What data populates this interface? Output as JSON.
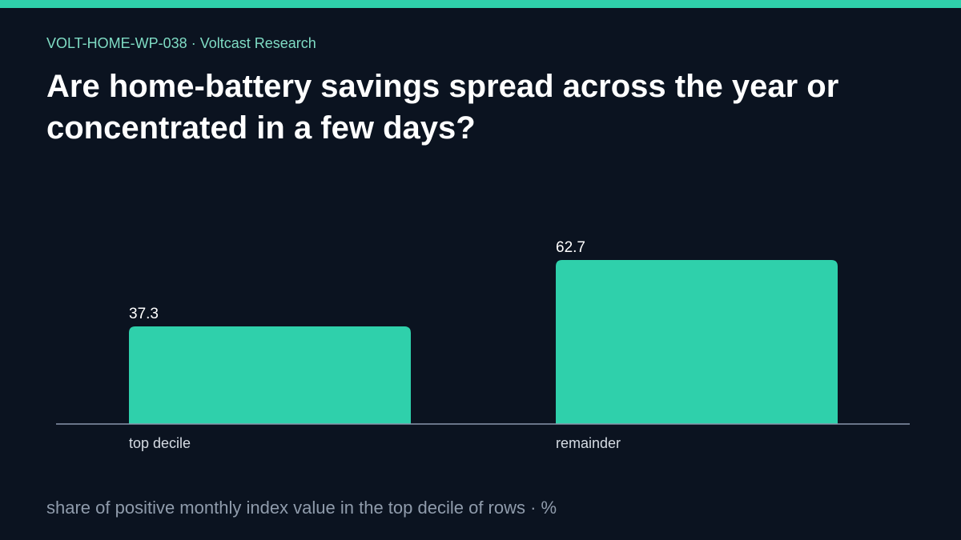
{
  "header": {
    "kicker": "VOLT-HOME-WP-038 · Voltcast Research",
    "title": "Are home-battery savings spread across the year or concentrated in a few days?"
  },
  "footnote": "share of positive monthly index value in the top decile of rows · %",
  "colors": {
    "background": "#0b1320",
    "accent": "#2fd0ab",
    "kicker": "#7fdcc4",
    "axis": "#8a98ad",
    "value_label": "#ffffff",
    "category_label": "#d5dbe3"
  },
  "chart_data": {
    "type": "bar",
    "categories": [
      "top decile",
      "remainder"
    ],
    "values": [
      37.3,
      62.7
    ],
    "value_labels": [
      "37.3",
      "62.7"
    ],
    "ylim": [
      0,
      100
    ],
    "grid": false,
    "legend": "none"
  }
}
